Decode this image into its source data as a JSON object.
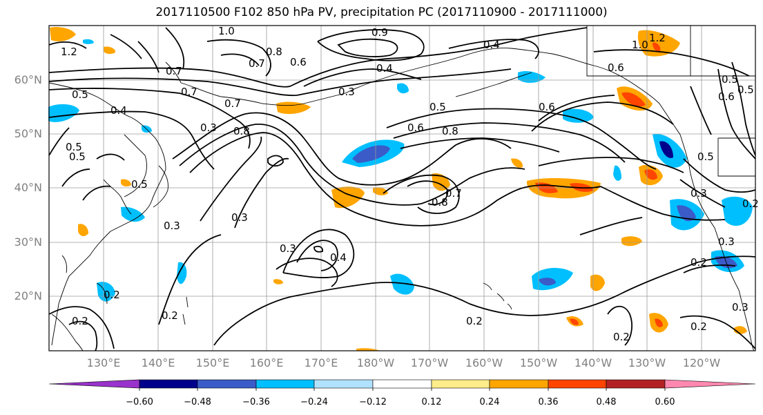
{
  "title": "2017110500 F102 850 hPa PV, precipitation PC (2017110900 - 2017111000)",
  "lat_labels": [
    "60°N",
    "50°N",
    "40°N",
    "30°N",
    "20°N"
  ],
  "lon_labels": [
    "130°E",
    "140°E",
    "150°E",
    "160°E",
    "170°E",
    "180°W",
    "170°W",
    "160°W",
    "150°W",
    "140°W",
    "130°W",
    "120°W"
  ],
  "colorbar": {
    "colors": [
      "#9932cc",
      "#00008b",
      "#3a5bc8",
      "#00bfff",
      "#b0e2ff",
      "#ffffff",
      "#ffec8b",
      "#ffa500",
      "#ff4500",
      "#b22222",
      "#ff88b0"
    ],
    "tick_labels": [
      "−0.60",
      "−0.48",
      "−0.36",
      "−0.24",
      "−0.12",
      "0.12",
      "0.24",
      "0.36",
      "0.48",
      "0.60"
    ]
  },
  "contour_labels": [
    "1.0",
    "0.9",
    "0.8",
    "0.7",
    "0.6",
    "0.5",
    "0.4",
    "0.3",
    "0.2",
    "1.2",
    "0.7",
    "0.5",
    "0.4",
    "0.3",
    "0.3",
    "0.4",
    "0.3",
    "0.2",
    "0.2",
    "0.2",
    "0.2",
    "0.2",
    "0.6",
    "0.8",
    "0.5",
    "0.7",
    "0.8",
    "0.6",
    "0.5",
    "0.3",
    "1.0",
    "1.2",
    "0.7",
    "0.5",
    "0.2",
    "0.3",
    "0.5",
    "0.4",
    "0.3",
    "0.7",
    "0.8",
    "0.6",
    "0.5",
    "0.6",
    "0.5",
    "0.3",
    "0.2"
  ]
}
